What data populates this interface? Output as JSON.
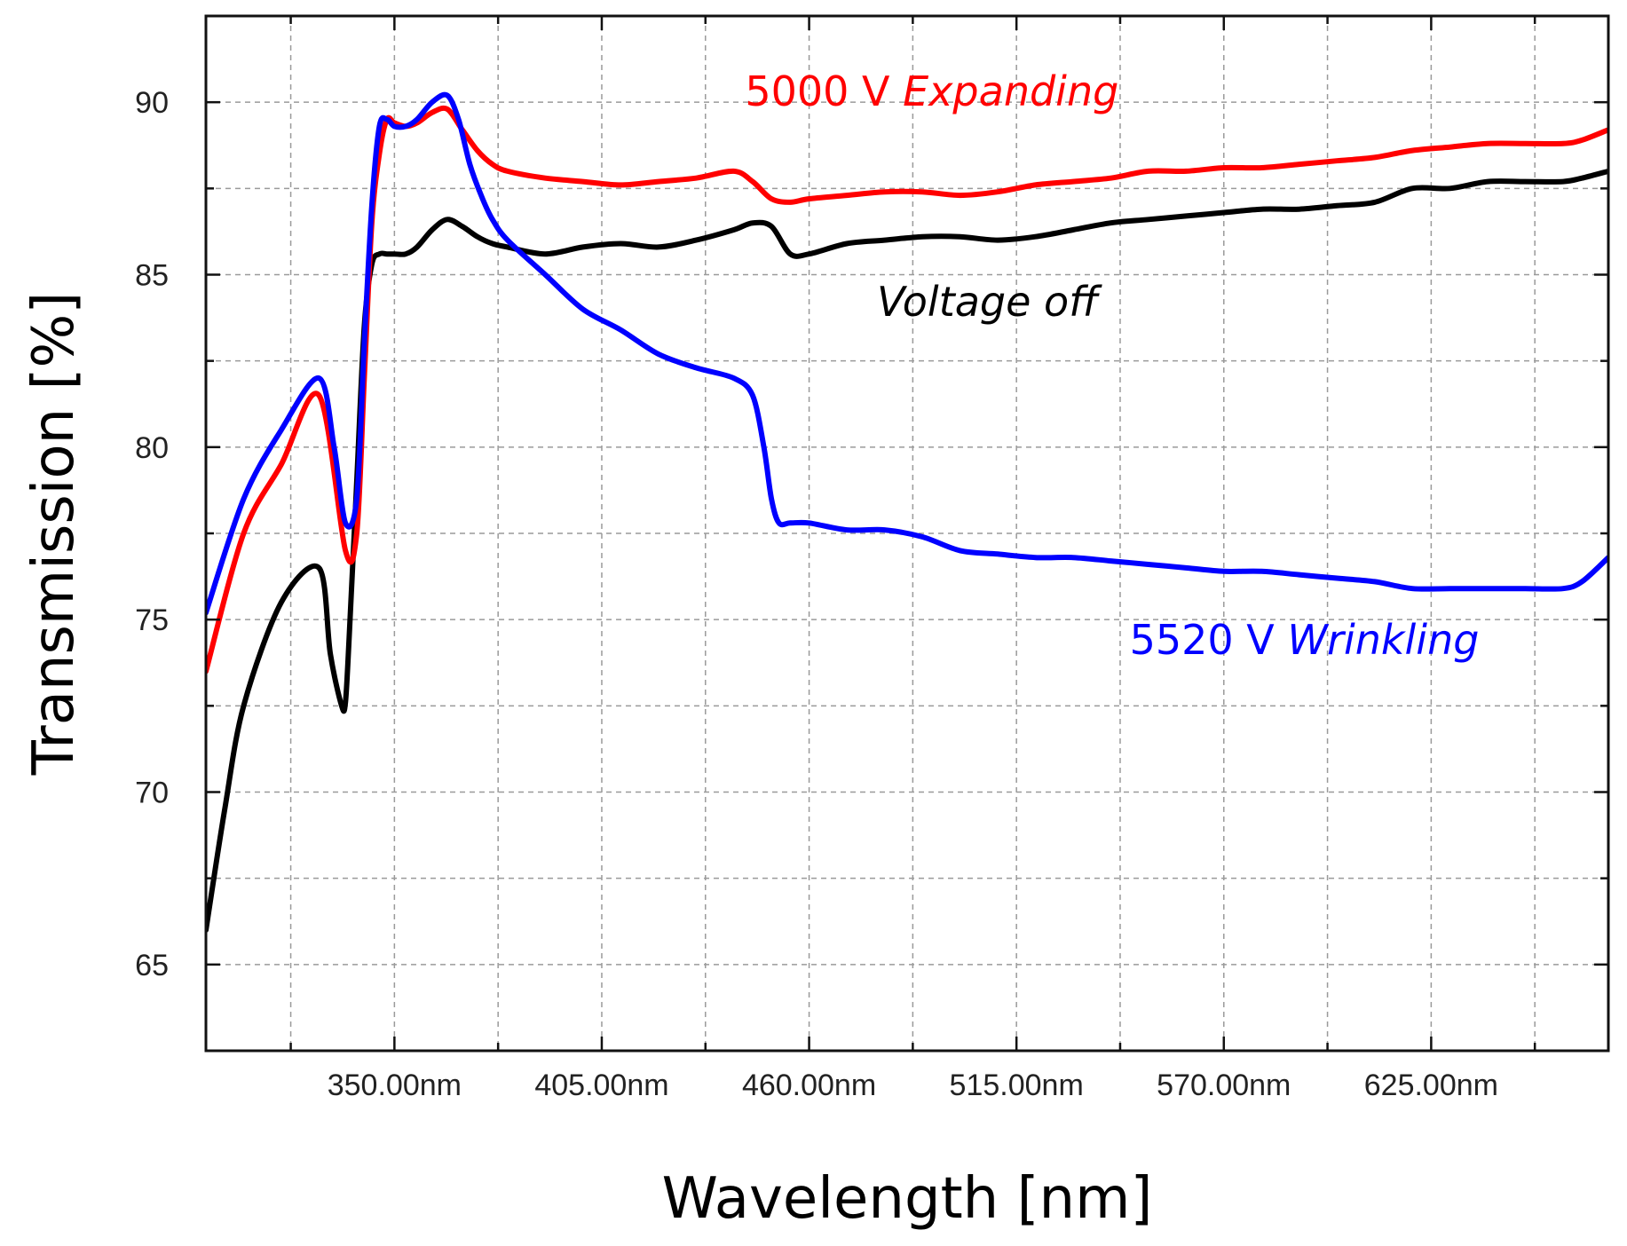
{
  "chart_data": {
    "type": "line",
    "xlabel": "Wavelength [nm]",
    "ylabel": "Transmission [%]",
    "xlim": [
      300,
      672
    ],
    "ylim": [
      62.5,
      92.5
    ],
    "grid": true,
    "x_ticks": [
      350,
      405,
      460,
      515,
      570,
      625
    ],
    "x_tick_labels": [
      "350.00nm",
      "405.00nm",
      "460.00nm",
      "515.00nm",
      "570.00nm",
      "625.00nm"
    ],
    "y_ticks": [
      65,
      70,
      75,
      80,
      85,
      90
    ],
    "y_tick_labels": [
      "65",
      "70",
      "75",
      "80",
      "85",
      "90"
    ],
    "series": [
      {
        "name": "5000 V Expanding",
        "color": "#ff0000",
        "x": [
          300,
          310,
          320,
          330,
          337,
          340,
          342,
          344,
          346,
          348,
          350,
          353,
          356,
          360,
          364,
          368,
          372,
          376,
          380,
          390,
          400,
          410,
          420,
          430,
          440,
          445,
          450,
          455,
          460,
          470,
          480,
          490,
          500,
          510,
          520,
          530,
          540,
          550,
          560,
          570,
          580,
          590,
          600,
          610,
          620,
          630,
          640,
          650,
          660,
          665,
          672
        ],
        "values": [
          73.5,
          77.5,
          79.5,
          81.5,
          77.0,
          77.5,
          82.0,
          86.5,
          88.5,
          89.5,
          89.4,
          89.3,
          89.4,
          89.7,
          89.8,
          89.2,
          88.6,
          88.2,
          88.0,
          87.8,
          87.7,
          87.6,
          87.7,
          87.8,
          88.0,
          87.7,
          87.2,
          87.1,
          87.2,
          87.3,
          87.4,
          87.4,
          87.3,
          87.4,
          87.6,
          87.7,
          87.8,
          88.0,
          88.0,
          88.1,
          88.1,
          88.2,
          88.3,
          88.4,
          88.6,
          88.7,
          88.8,
          88.8,
          88.8,
          88.9,
          89.2
        ]
      },
      {
        "name": "Voltage off",
        "color": "#000000",
        "x": [
          300,
          305,
          310,
          320,
          330,
          333,
          336,
          337,
          338,
          340,
          342,
          344,
          346,
          348,
          350,
          353,
          356,
          360,
          364,
          368,
          372,
          376,
          380,
          390,
          400,
          410,
          420,
          430,
          440,
          445,
          450,
          455,
          460,
          470,
          480,
          490,
          500,
          510,
          520,
          530,
          540,
          550,
          560,
          570,
          580,
          590,
          600,
          610,
          620,
          630,
          640,
          650,
          660,
          665,
          672
        ],
        "values": [
          66.0,
          69.5,
          72.5,
          75.5,
          76.5,
          74.0,
          72.5,
          72.6,
          74.5,
          79.0,
          83.5,
          85.3,
          85.6,
          85.6,
          85.6,
          85.6,
          85.8,
          86.3,
          86.6,
          86.4,
          86.1,
          85.9,
          85.8,
          85.6,
          85.8,
          85.9,
          85.8,
          86.0,
          86.3,
          86.5,
          86.4,
          85.6,
          85.6,
          85.9,
          86.0,
          86.1,
          86.1,
          86.0,
          86.1,
          86.3,
          86.5,
          86.6,
          86.7,
          86.8,
          86.9,
          86.9,
          87.0,
          87.1,
          87.5,
          87.5,
          87.7,
          87.7,
          87.7,
          87.8,
          88.0
        ]
      },
      {
        "name": "5520 V Wrinkling",
        "color": "#0000ff",
        "x": [
          300,
          310,
          320,
          330,
          334,
          337,
          340,
          342,
          344,
          346,
          348,
          350,
          353,
          356,
          360,
          364,
          367,
          370,
          373,
          376,
          380,
          390,
          400,
          410,
          420,
          430,
          440,
          445,
          448,
          450,
          452,
          455,
          460,
          470,
          480,
          490,
          500,
          510,
          520,
          530,
          540,
          550,
          560,
          570,
          580,
          590,
          600,
          610,
          620,
          630,
          640,
          650,
          660,
          665,
          672
        ],
        "values": [
          75.2,
          78.5,
          80.5,
          82.0,
          80.0,
          77.8,
          78.5,
          83.0,
          87.0,
          89.3,
          89.5,
          89.3,
          89.3,
          89.5,
          90.0,
          90.2,
          89.5,
          88.2,
          87.3,
          86.6,
          86.0,
          85.0,
          84.0,
          83.4,
          82.7,
          82.3,
          82.0,
          81.5,
          80.0,
          78.5,
          77.8,
          77.8,
          77.8,
          77.6,
          77.6,
          77.4,
          77.0,
          76.9,
          76.8,
          76.8,
          76.7,
          76.6,
          76.5,
          76.4,
          76.4,
          76.3,
          76.2,
          76.1,
          75.9,
          75.9,
          75.9,
          75.9,
          75.9,
          76.1,
          76.8
        ]
      }
    ],
    "annotations": [
      {
        "parts": [
          {
            "text": "5000 V ",
            "italic": false
          },
          {
            "text": "Expanding",
            "italic": true
          }
        ],
        "color": "#ff0000",
        "x": 443,
        "y": 89.9
      },
      {
        "parts": [
          {
            "text": "Voltage off",
            "italic": true
          }
        ],
        "color": "#000000",
        "x": 478,
        "y": 83.8
      },
      {
        "parts": [
          {
            "text": "5520 V ",
            "italic": false
          },
          {
            "text": "Wrinkling",
            "italic": true
          }
        ],
        "color": "#0000ff",
        "x": 545,
        "y": 74.0
      }
    ]
  }
}
